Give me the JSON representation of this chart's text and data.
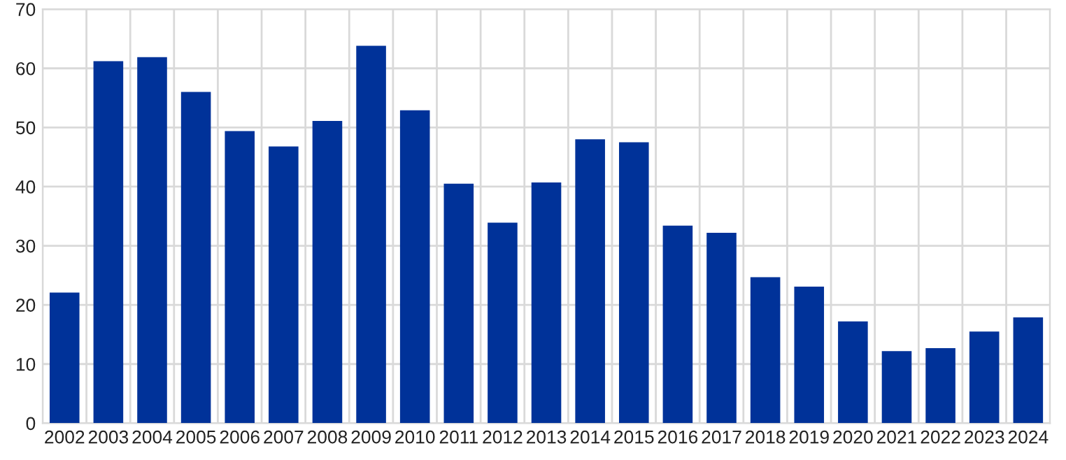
{
  "chart_data": {
    "type": "bar",
    "categories": [
      "2002",
      "2003",
      "2004",
      "2005",
      "2006",
      "2007",
      "2008",
      "2009",
      "2010",
      "2011",
      "2012",
      "2013",
      "2014",
      "2015",
      "2016",
      "2017",
      "2018",
      "2019",
      "2020",
      "2021",
      "2022",
      "2023",
      "2024"
    ],
    "values": [
      22.1,
      61.2,
      61.9,
      56.0,
      49.4,
      46.8,
      51.1,
      63.8,
      52.9,
      40.5,
      33.9,
      40.7,
      48.0,
      47.5,
      33.4,
      32.2,
      24.7,
      23.1,
      17.2,
      12.2,
      12.7,
      15.5,
      17.9
    ],
    "color": "#003299",
    "ylim": [
      0,
      70
    ],
    "yticks": [
      0,
      10,
      20,
      30,
      40,
      50,
      60,
      70
    ],
    "grid": true
  }
}
